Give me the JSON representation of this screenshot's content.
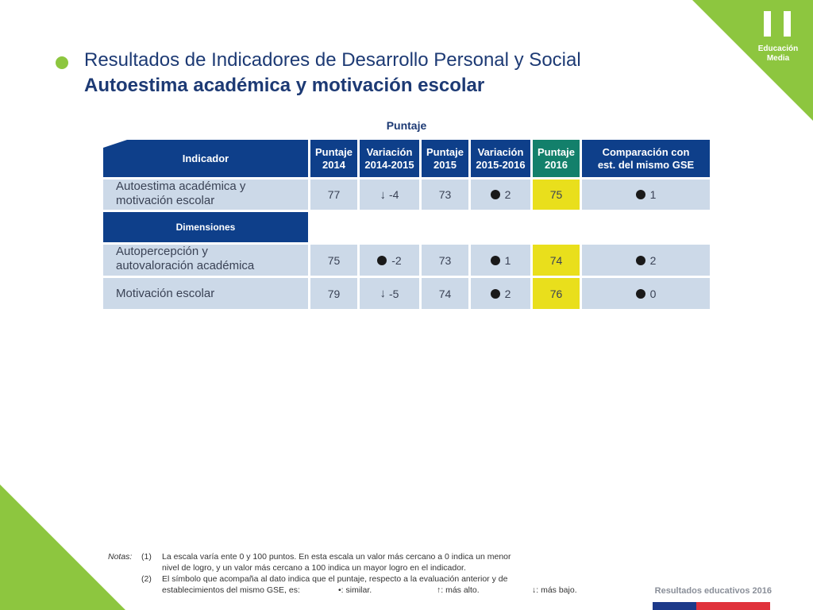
{
  "brand": {
    "label_line1": "Educación",
    "label_line2": "Media"
  },
  "title": {
    "main": "Resultados de Indicadores de Desarrollo Personal y Social",
    "sub": "Autoestima académica y motivación escolar"
  },
  "table": {
    "group_label": "Puntaje",
    "headers": {
      "indicador": "Indicador",
      "p2014_l1": "Puntaje",
      "p2014_l2": "2014",
      "v1415_l1": "Variación",
      "v1415_l2": "2014-2015",
      "p2015_l1": "Puntaje",
      "p2015_l2": "2015",
      "v1516_l1": "Variación",
      "v1516_l2": "2015-2016",
      "p2016_l1": "Puntaje",
      "p2016_l2": "2016",
      "comp_l1": "Comparación con",
      "comp_l2": "est. del mismo GSE"
    },
    "main_row": {
      "label_l1": "Autoestima académica y",
      "label_l2": "motivación escolar",
      "p2014": "77",
      "v1415": "-4",
      "v1415_symbol": "down",
      "p2015": "73",
      "v1516": "2",
      "v1516_symbol": "similar",
      "p2016": "75",
      "comp": "1",
      "comp_symbol": "similar"
    },
    "dimensions_label": "Dimensiones",
    "dim_rows": [
      {
        "label_l1": "Autopercepción y",
        "label_l2": "autovaloración académica",
        "p2014": "75",
        "v1415": "-2",
        "v1415_symbol": "similar",
        "p2015": "73",
        "v1516": "1",
        "v1516_symbol": "similar",
        "p2016": "74",
        "comp": "2",
        "comp_symbol": "similar"
      },
      {
        "label_l1": "Motivación escolar",
        "label_l2": "",
        "p2014": "79",
        "v1415": "-5",
        "v1415_symbol": "down",
        "p2015": "74",
        "v1516": "2",
        "v1516_symbol": "similar",
        "p2016": "76",
        "comp": "0",
        "comp_symbol": "similar"
      }
    ]
  },
  "notes": {
    "label": "Notas:",
    "n1_num": "(1)",
    "n1_l1": "La escala varía ente 0 y 100 puntos. En esta escala un valor más cercano a 0 indica un menor",
    "n1_l2": "nivel de logro, y un valor más cercano a 100 indica un mayor logro en el indicador.",
    "n2_num": "(2)",
    "n2_l1": "El símbolo que acompaña al dato indica que el puntaje, respecto a la evaluación anterior y de",
    "n2_l2_prefix": "establecimientos del mismo GSE, es:",
    "similar": "•: similar.",
    "higher": "↑: más alto.",
    "lower": "↓: más bajo."
  },
  "footer": {
    "text": "Resultados educativos 2016"
  },
  "colors": {
    "green": "#8dc63f",
    "navy": "#0e3f8a",
    "teal": "#13806b",
    "highlight": "#e9df1c",
    "cell": "#ccd9e8"
  }
}
